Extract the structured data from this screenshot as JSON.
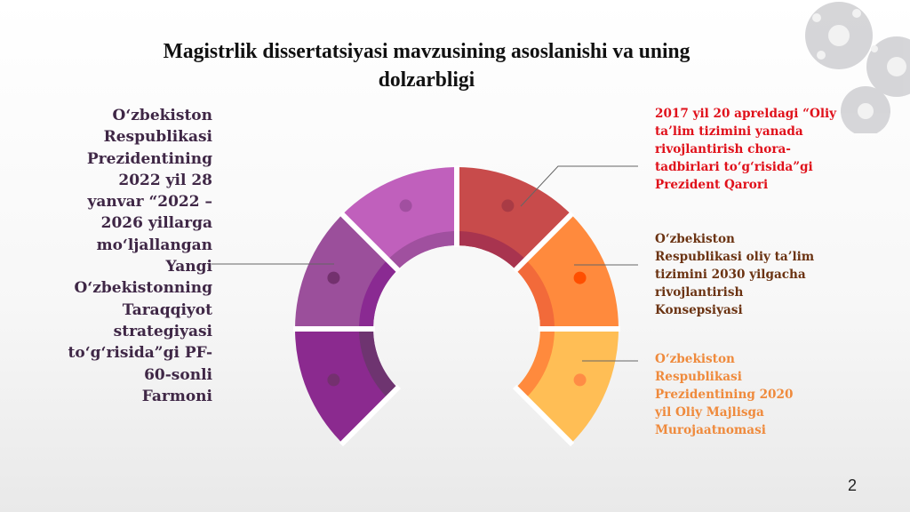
{
  "title_lines": [
    "Magistrlik dissertatsiyasi mavzusining asoslanishi va uning",
    "dolzarbligi"
  ],
  "left_text_lines": [
    "O‘zbekiston",
    "Respublikasi",
    "Prezidentining",
    "2022 yil 28",
    "yanvar “2022 –",
    "2026 yillarga",
    "mo‘ljallangan",
    "Yangi",
    "O‘zbekistonning",
    "Taraqqiyot",
    "strategiyasi",
    "to‘g‘risida”gi PF-",
    "60-sonli",
    "Farmoni "
  ],
  "right_texts": [
    {
      "lines": [
        "2017 yil 20 apreldagi “Oliy",
        "ta’lim tizimini yanada",
        "rivojlantirish chora-",
        "tadbirlari to‘g‘risida”gi",
        "Prezident Qarori"
      ],
      "color": "#e0101a"
    },
    {
      "lines": [
        "O‘zbekiston",
        "Respublikasi oliy ta’lim",
        "tizimini 2030 yilgacha",
        "rivojlantirish",
        "Konsepsiyasi"
      ],
      "color": "#6b3312"
    },
    {
      "lines": [
        "O‘zbekiston",
        "Respublikasi",
        "Prezidentining 2020",
        "yil Oliy Majlisga",
        "Murojaatnomasi"
      ],
      "color": "#ef8a3c"
    }
  ],
  "segments": [
    {
      "name": "top-right",
      "color": "#c84b4b",
      "inner": "#a8344f",
      "dot": "#a93b45"
    },
    {
      "name": "right",
      "color": "#ff8a3d",
      "inner": "#f26a3a",
      "dot": "#ff4f00"
    },
    {
      "name": "bottom-right",
      "color": "#ffbe55",
      "inner": "#ff8a3d",
      "dot": "#ff8c45"
    },
    {
      "name": "bottom-left",
      "color": "#8b2a8f",
      "inner": "#6e3470",
      "dot": "#74306f"
    },
    {
      "name": "left",
      "color": "#9b4f9b",
      "inner": "#8a2a92",
      "dot": "#73316e"
    },
    {
      "name": "top-left",
      "color": "#c060bc",
      "inner": "#a0509f",
      "dot": "#a14fa0"
    }
  ],
  "page_number": "2"
}
